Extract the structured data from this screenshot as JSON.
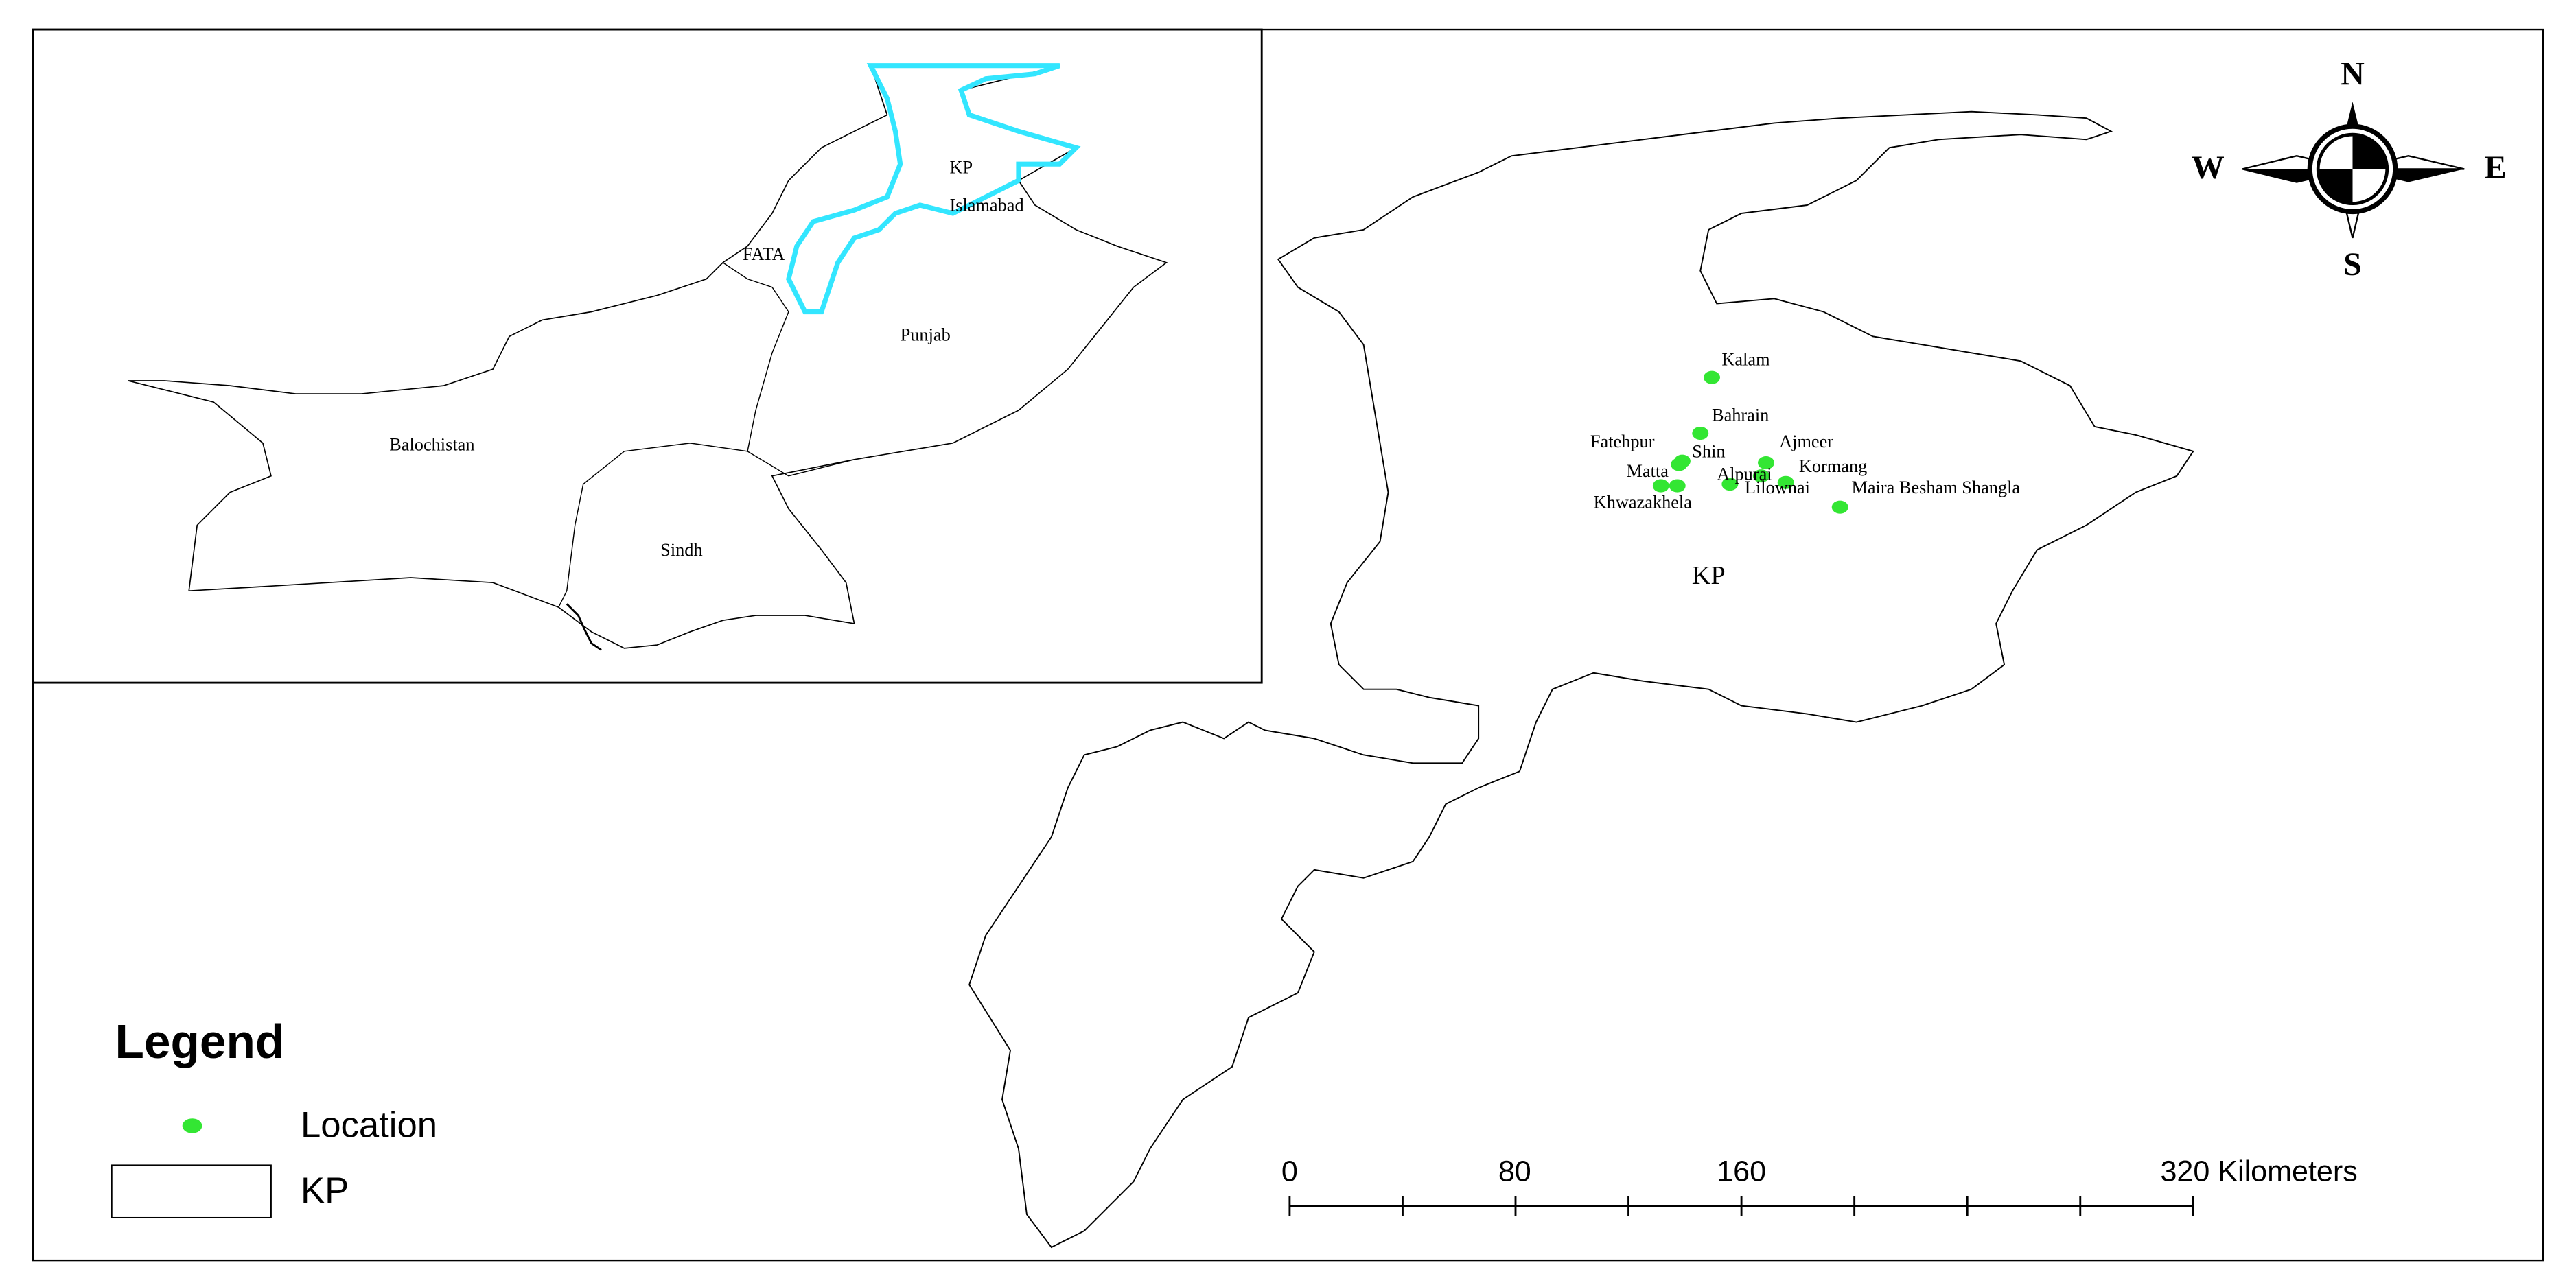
{
  "inset_map": {
    "labels": [
      "KP",
      "Islamabad",
      "FATA",
      "Punjab",
      "Balochistan",
      "Sindh"
    ]
  },
  "main_map": {
    "region_label": "KP",
    "locations": [
      "Kalam",
      "Bahrain",
      "Fatehpur",
      "Shin",
      "Ajmeer",
      "Kormang",
      "Alpurai",
      "Matta",
      "Khwazakhela",
      "Lilownai",
      "Maira Besham Shangla"
    ]
  },
  "compass": {
    "north": "N",
    "south": "S",
    "east": "E",
    "west": "W"
  },
  "legend": {
    "title": "Legend",
    "items": [
      "Location",
      "KP"
    ]
  },
  "scale_bar": {
    "labels": [
      "0",
      "80",
      "160",
      "320 Kilometers"
    ]
  }
}
